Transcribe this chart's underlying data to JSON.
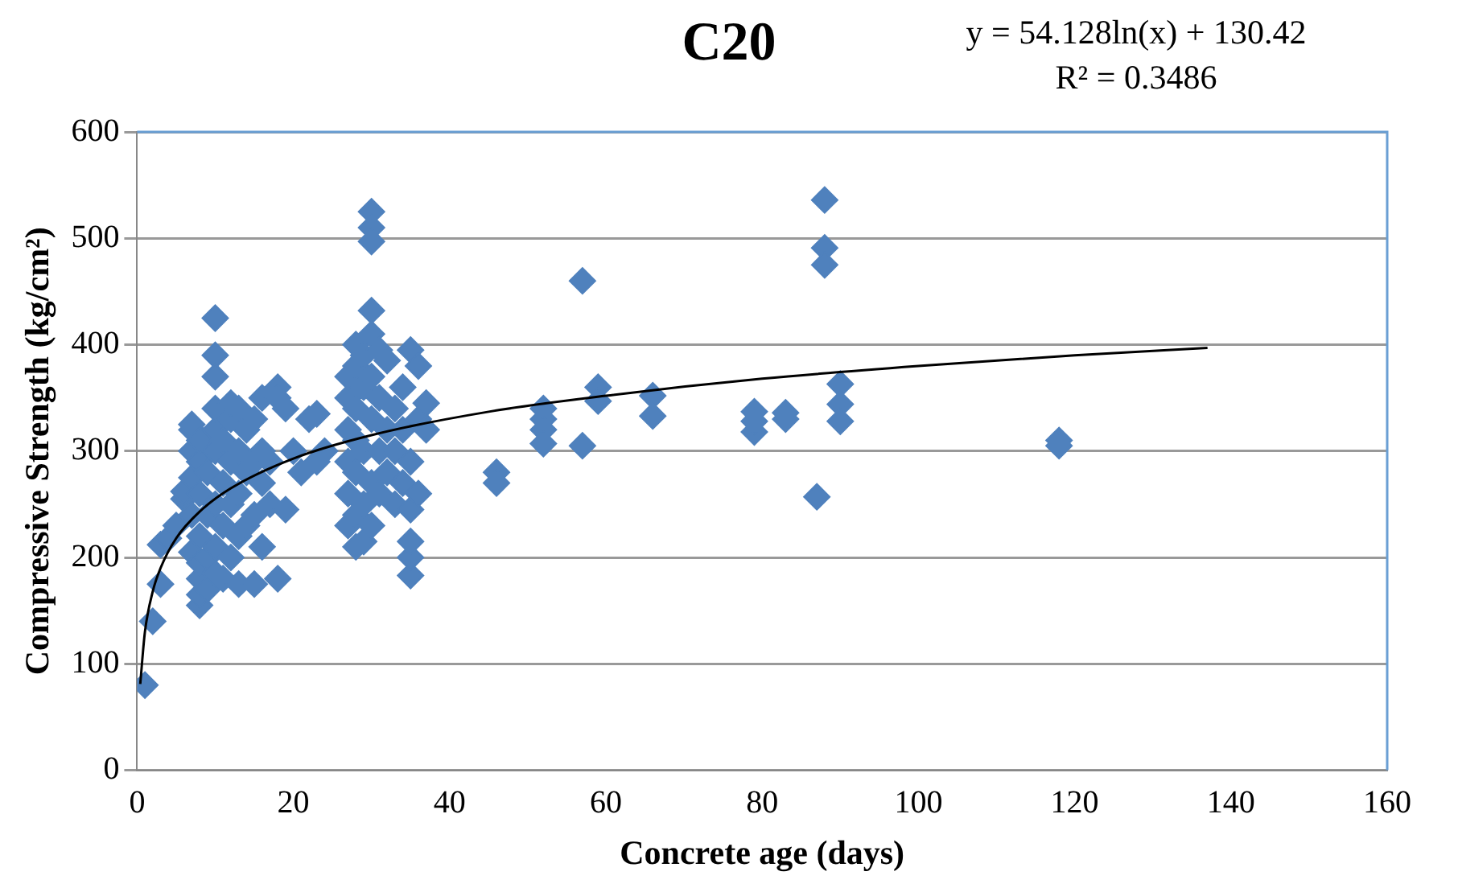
{
  "chart_data": {
    "type": "scatter",
    "title": "C20",
    "xlabel": "Concrete age (days)",
    "ylabel": "Compressive Strength (kg/cm²)",
    "annotations": [
      "y = 54.128ln(x) + 130.42",
      "R² = 0.3486"
    ],
    "xlim": [
      0,
      160
    ],
    "xticks": [
      0,
      20,
      40,
      60,
      80,
      100,
      120,
      140,
      160
    ],
    "ylim": [
      0,
      600
    ],
    "yticks": [
      0,
      100,
      200,
      300,
      400,
      500,
      600
    ],
    "grid": "y",
    "legend": false,
    "series": [
      {
        "color": "#4f81bd",
        "marker": "diamond",
        "x": [
          1,
          2,
          3,
          3,
          4,
          5,
          6,
          6,
          7,
          7,
          7,
          7,
          7,
          7,
          8,
          8,
          8,
          8,
          8,
          8,
          8,
          8,
          9,
          9,
          9,
          9,
          10,
          10,
          10,
          10,
          10,
          10,
          10,
          10,
          10,
          11,
          11,
          11,
          11,
          12,
          12,
          12,
          12,
          12,
          13,
          13,
          13,
          13,
          13,
          14,
          14,
          14,
          15,
          15,
          15,
          15,
          16,
          16,
          16,
          16,
          17,
          17,
          18,
          18,
          18,
          19,
          19,
          20,
          21,
          22,
          23,
          23,
          24,
          27,
          27,
          27,
          27,
          27,
          27,
          28,
          28,
          28,
          28,
          28,
          28,
          28,
          29,
          29,
          29,
          29,
          29,
          30,
          30,
          30,
          30,
          30,
          30,
          30,
          30,
          30,
          31,
          31,
          31,
          31,
          32,
          32,
          32,
          33,
          33,
          33,
          34,
          34,
          34,
          35,
          35,
          35,
          35,
          35,
          35,
          36,
          36,
          36,
          37,
          37,
          46,
          46,
          52,
          52,
          52,
          52,
          57,
          57,
          59,
          59,
          66,
          66,
          79,
          79,
          79,
          83,
          83,
          88,
          88,
          88,
          87,
          90,
          90,
          90,
          118,
          118
        ],
        "values": [
          80,
          140,
          175,
          212,
          218,
          230,
          255,
          262,
          275,
          300,
          320,
          325,
          240,
          205,
          155,
          165,
          180,
          195,
          220,
          260,
          290,
          310,
          170,
          200,
          240,
          280,
          425,
          390,
          370,
          185,
          210,
          250,
          300,
          320,
          340,
          180,
          230,
          270,
          310,
          200,
          250,
          290,
          330,
          345,
          175,
          220,
          260,
          300,
          340,
          230,
          280,
          320,
          175,
          240,
          290,
          330,
          210,
          270,
          300,
          350,
          250,
          290,
          180,
          360,
          350,
          245,
          340,
          300,
          280,
          330,
          335,
          290,
          300,
          230,
          260,
          290,
          320,
          350,
          370,
          210,
          240,
          280,
          310,
          340,
          380,
          400,
          215,
          250,
          300,
          360,
          390,
          525,
          510,
          497,
          432,
          410,
          230,
          270,
          330,
          370,
          260,
          300,
          350,
          395,
          280,
          320,
          385,
          250,
          300,
          340,
          270,
          320,
          360,
          183,
          200,
          215,
          245,
          290,
          395,
          260,
          330,
          380,
          320,
          345,
          280,
          270,
          340,
          330,
          320,
          307,
          460,
          305,
          360,
          347,
          352,
          333,
          337,
          318,
          328,
          336,
          330,
          536,
          491,
          475,
          257,
          363,
          344,
          328,
          310,
          305
        ]
      },
      {
        "type": "line",
        "color": "#000000",
        "x": [
          0.4,
          1,
          2,
          3,
          5,
          8,
          12,
          20,
          30,
          45,
          60,
          80,
          100,
          120,
          137
        ],
        "values": [
          81,
          130,
          168,
          190,
          218,
          243,
          265,
          293,
          315,
          337,
          352,
          368,
          380,
          390,
          397
        ]
      }
    ]
  }
}
